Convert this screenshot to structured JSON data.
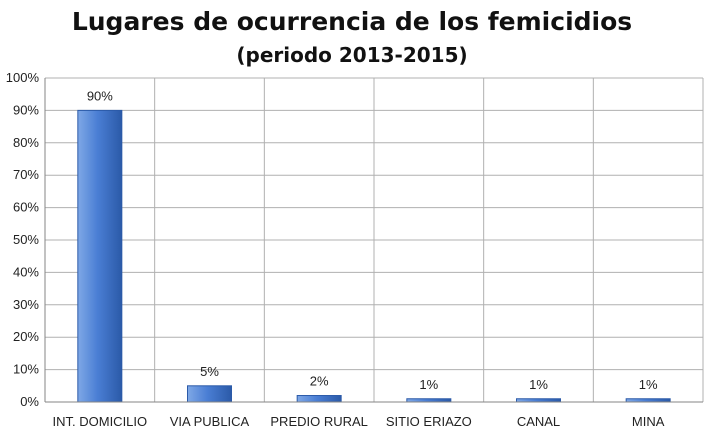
{
  "chart_data": {
    "type": "bar",
    "title": "Lugares de ocurrencia de los femicidios",
    "subtitle": "(periodo 2013-2015)",
    "categories": [
      "INT. DOMICILIO",
      "VIA PUBLICA",
      "PREDIO RURAL",
      "SITIO ERIAZO",
      "CANAL",
      "MINA"
    ],
    "values": [
      90,
      5,
      2,
      1,
      1,
      1
    ],
    "data_labels": [
      "90%",
      "5%",
      "2%",
      "1%",
      "1%",
      "1%"
    ],
    "ylim": [
      0,
      100
    ],
    "yticks": [
      0,
      10,
      20,
      30,
      40,
      50,
      60,
      70,
      80,
      90,
      100
    ],
    "ytick_labels": [
      "0%",
      "10%",
      "20%",
      "30%",
      "40%",
      "50%",
      "60%",
      "70%",
      "80%",
      "90%",
      "100%"
    ],
    "xlabel": "",
    "ylabel": "",
    "grid": true,
    "legend": "none",
    "colors": {
      "bar_light": "#7fa8e6",
      "bar_mid": "#4a7ed4",
      "bar_dark": "#2b5aa8",
      "grid": "#b0b0b0",
      "axis": "#868686"
    }
  }
}
